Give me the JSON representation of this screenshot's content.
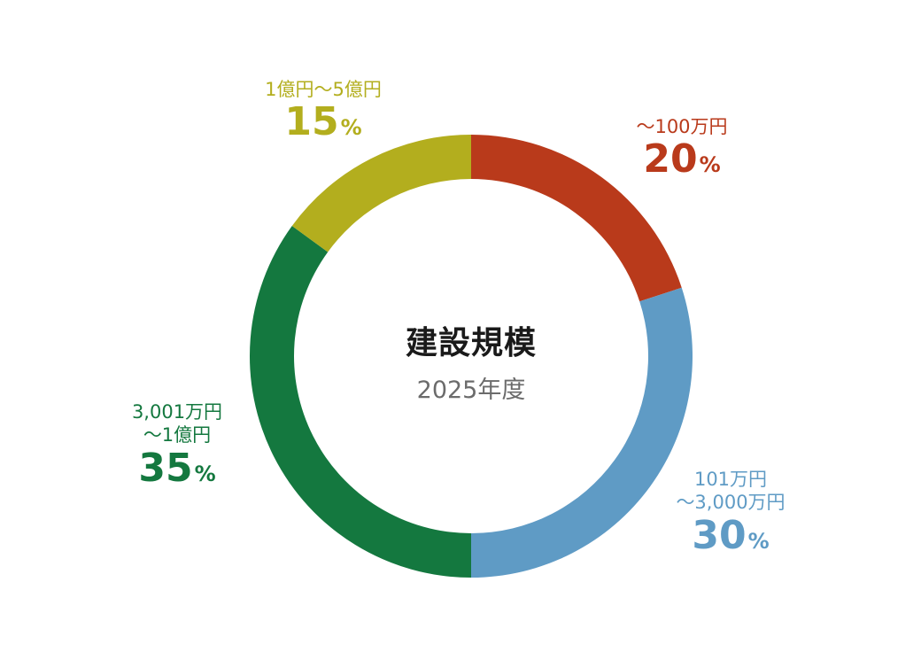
{
  "chart_data": {
    "type": "pie",
    "variant": "donut",
    "title": "建設規模",
    "subtitle": "2025年度",
    "unit": "%",
    "categories": [
      "〜100万円",
      "101万円〜3,000万円",
      "3,001万円〜1億円",
      "1億円〜5億円"
    ],
    "values": [
      20,
      30,
      35,
      15
    ],
    "colors": [
      "#b93a1b",
      "#5f9bc5",
      "#14783f",
      "#b3ae1e"
    ],
    "start_angle_deg": 0,
    "direction": "clockwise",
    "legend": "none (direct labels)",
    "slices": [
      {
        "label_lines": [
          "〜100万円"
        ],
        "value": "20",
        "color": "#b93a1b"
      },
      {
        "label_lines": [
          "101万円",
          "〜3,000万円"
        ],
        "value": "30",
        "color": "#5f9bc5"
      },
      {
        "label_lines": [
          "3,001万円",
          "〜1億円"
        ],
        "value": "35",
        "color": "#14783f"
      },
      {
        "label_lines": [
          "1億円〜5億円"
        ],
        "value": "15",
        "color": "#b3ae1e"
      }
    ]
  },
  "center": {
    "title": "建設規模",
    "subtitle": "2025年度"
  },
  "percent_sign": "%"
}
